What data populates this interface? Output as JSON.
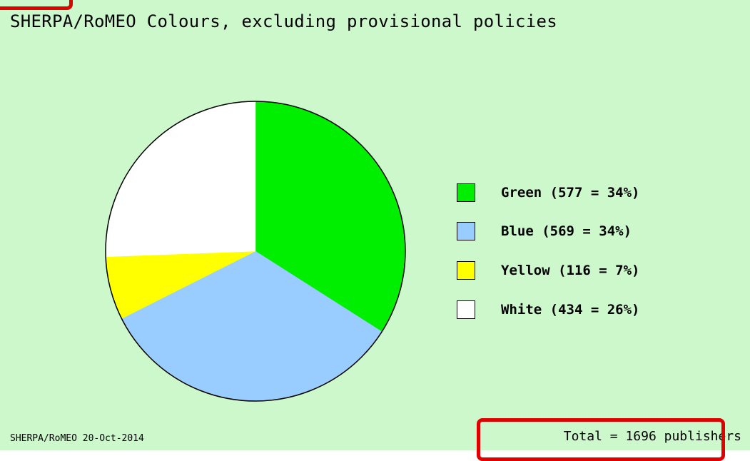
{
  "chart_data": {
    "type": "pie",
    "title": "SHERPA/RoMEO Colours, excluding provisional policies",
    "slices": [
      {
        "label": "Green",
        "value": 577,
        "percent": 34,
        "legend": "Green (577 = 34%)",
        "color": "#00ee00"
      },
      {
        "label": "Blue",
        "value": 569,
        "percent": 34,
        "legend": "Blue (569 = 34%)",
        "color": "#99ccff"
      },
      {
        "label": "Yellow",
        "value": 116,
        "percent": 7,
        "legend": "Yellow (116 = 7%)",
        "color": "#ffff00"
      },
      {
        "label": "White",
        "value": 434,
        "percent": 26,
        "legend": "White (434 = 26%)",
        "color": "#ffffff"
      }
    ],
    "total_text": "Total = 1696 publishers",
    "source_text": "SHERPA/RoMEO 20-Oct-2014",
    "background_color": "#ccf8cc",
    "legend_position": "right"
  },
  "highlight_color": "#e00000"
}
